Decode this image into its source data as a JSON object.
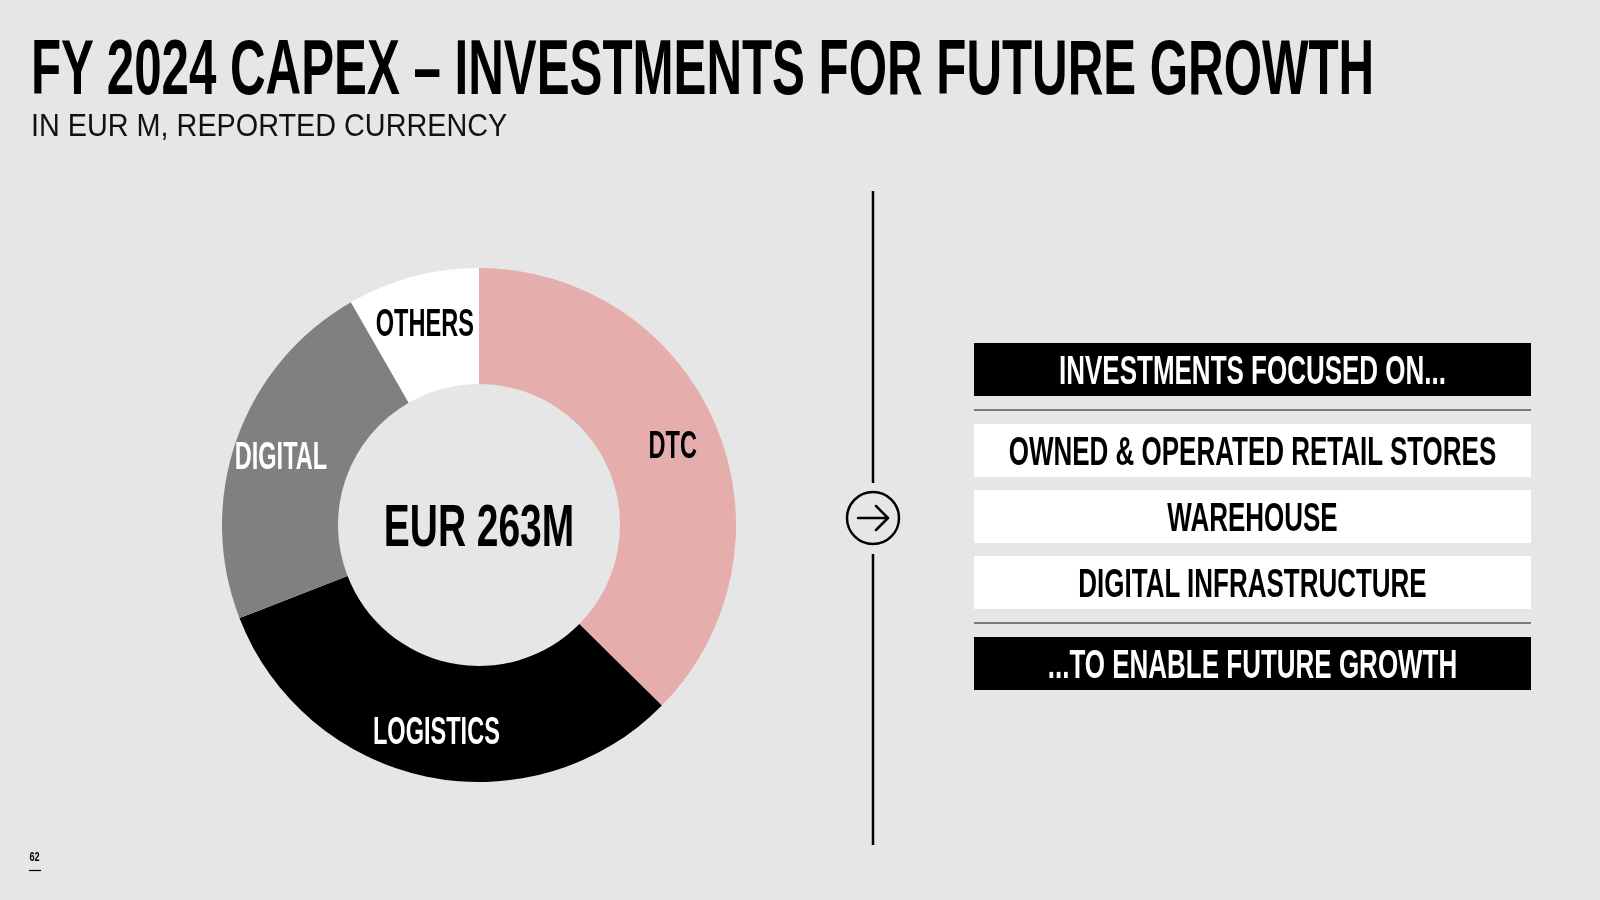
{
  "chart_data": {
    "type": "donut",
    "title": "FY 2024 CAPEX – INVESTMENTS FOR FUTURE GROWTH",
    "subtitle": "IN EUR M, REPORTED CURRENCY",
    "categories": [
      "DTC",
      "LOGISTICS",
      "DIGITAL",
      "OTHERS"
    ],
    "values": [
      37.4,
      31.7,
      22.6,
      8.3
    ],
    "colors": [
      "#e5adab",
      "#000000",
      "#808080",
      "#ffffff"
    ],
    "annotations": [
      "EUR 263M",
      "INVESTMENTS FOCUSED ON...",
      "OWNED & OPERATED RETAIL STORES",
      "WAREHOUSE",
      "DIGITAL INFRASTRUCTURE",
      "...TO ENABLE FUTURE GROWTH",
      "62"
    ]
  }
}
